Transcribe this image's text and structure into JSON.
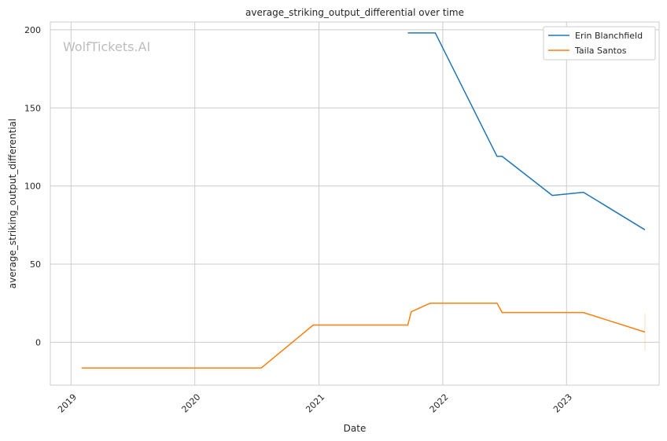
{
  "chart_data": {
    "type": "line",
    "title": "average_striking_output_differential over time",
    "xlabel": "Date",
    "ylabel": "average_striking_output_differential",
    "watermark": "WolfTickets.AI",
    "x_range": [
      "2018-11-01",
      "2023-10-01"
    ],
    "ylim": [
      -27.5,
      205
    ],
    "x_ticks": [
      {
        "date": "2019-01-01",
        "label": "2019"
      },
      {
        "date": "2020-01-01",
        "label": "2020"
      },
      {
        "date": "2021-01-01",
        "label": "2021"
      },
      {
        "date": "2022-01-01",
        "label": "2022"
      },
      {
        "date": "2023-01-01",
        "label": "2023"
      }
    ],
    "y_ticks": [
      0,
      50,
      100,
      150,
      200
    ],
    "grid": true,
    "legend_position": "top-right",
    "series": [
      {
        "name": "Erin Blanchfield",
        "color": "#1f77b4",
        "points": [
          {
            "x": "2021-09-20",
            "y": 198
          },
          {
            "x": "2021-12-10",
            "y": 198
          },
          {
            "x": "2022-06-10",
            "y": 119
          },
          {
            "x": "2022-06-25",
            "y": 119
          },
          {
            "x": "2022-11-20",
            "y": 94
          },
          {
            "x": "2023-02-20",
            "y": 96
          },
          {
            "x": "2023-08-20",
            "y": 72
          }
        ]
      },
      {
        "name": "Taila Santos",
        "color": "#ff7f0e",
        "points": [
          {
            "x": "2019-02-01",
            "y": -16.5
          },
          {
            "x": "2020-07-15",
            "y": -16.5
          },
          {
            "x": "2020-12-15",
            "y": 11
          },
          {
            "x": "2021-09-20",
            "y": 11
          },
          {
            "x": "2021-09-30",
            "y": 19.5
          },
          {
            "x": "2021-11-25",
            "y": 25
          },
          {
            "x": "2022-06-10",
            "y": 25
          },
          {
            "x": "2022-06-25",
            "y": 19
          },
          {
            "x": "2023-02-20",
            "y": 19
          },
          {
            "x": "2023-08-20",
            "y": 6.5
          }
        ]
      }
    ]
  }
}
